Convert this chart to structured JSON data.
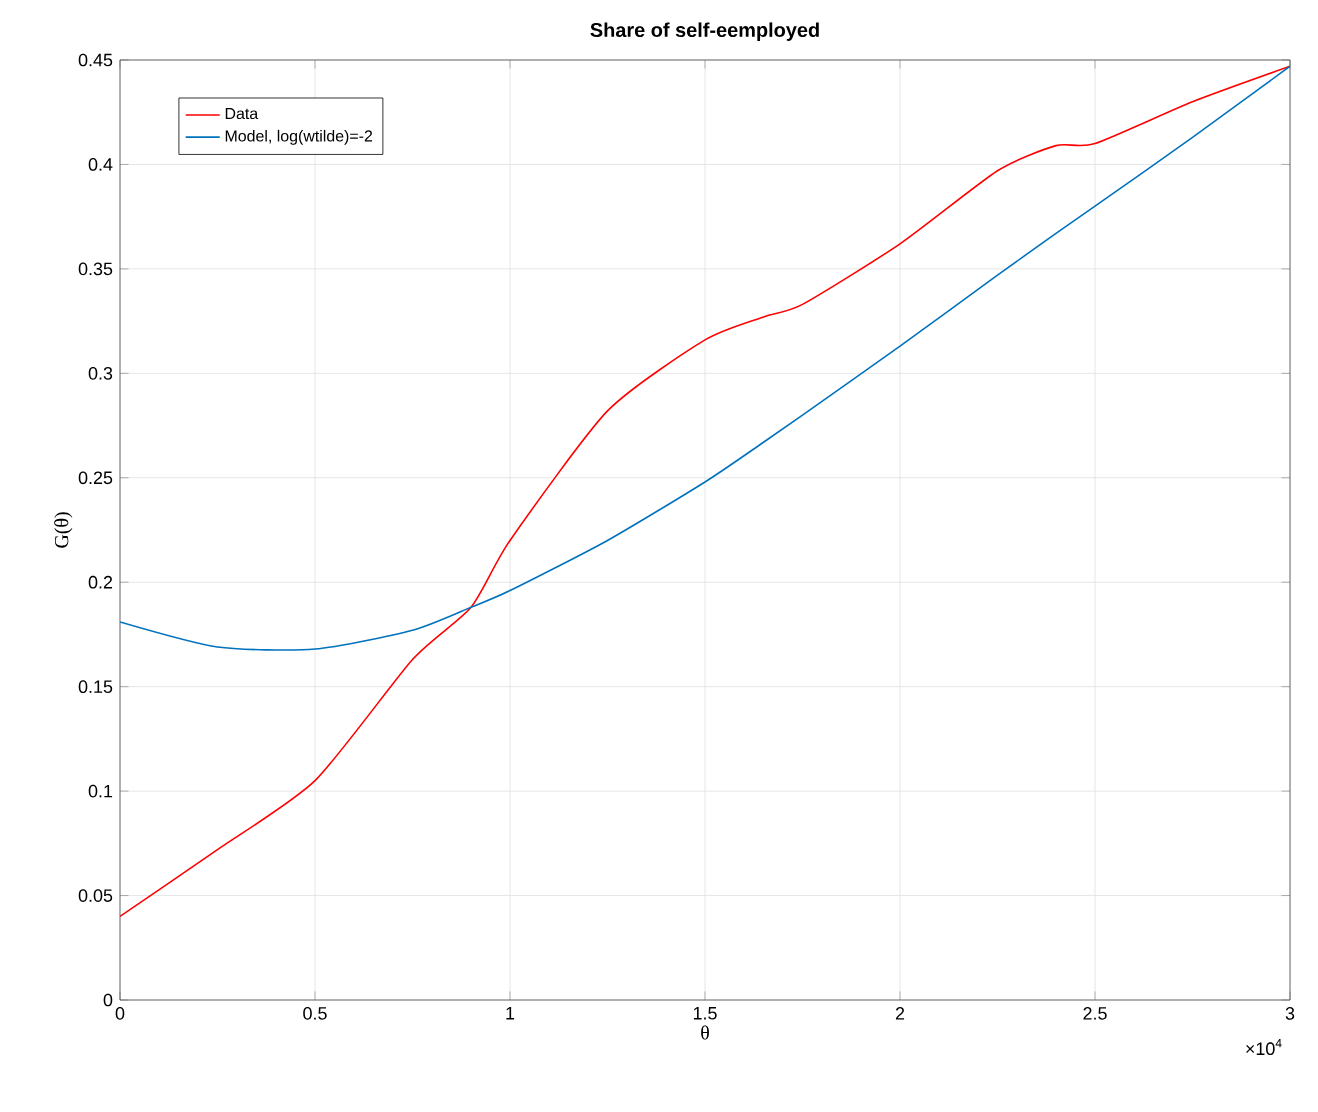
{
  "chart_data": {
    "type": "line",
    "title": "Share of self-eemployed",
    "xlabel": "θ",
    "ylabel": "G(θ)",
    "annotations": [
      "×10$^{4}$"
    ],
    "x": [
      0,
      0.25,
      0.5,
      0.75,
      0.9,
      1.0,
      1.25,
      1.5,
      1.65,
      1.75,
      2.0,
      2.25,
      2.4,
      2.5,
      2.75,
      3.0
    ],
    "series": [
      {
        "name": "Data",
        "color": "#ff0000",
        "values": [
          0.04,
          0.072,
          0.105,
          0.163,
          0.188,
          0.22,
          0.282,
          0.316,
          0.327,
          0.333,
          0.362,
          0.397,
          0.409,
          0.41,
          0.43,
          0.447
        ]
      },
      {
        "name": "Model, log(wtilde)=-2",
        "color": "#0072bd",
        "values": [
          0.181,
          0.169,
          0.168,
          0.177,
          0.188,
          0.196,
          0.22,
          0.248,
          0.267,
          0.28,
          0.313,
          0.347,
          0.367,
          0.38,
          0.413,
          0.447
        ]
      }
    ],
    "xlim": [
      0,
      3
    ],
    "ylim": [
      0,
      0.45
    ],
    "xticks": [
      0,
      0.5,
      1,
      1.5,
      2,
      2.5,
      3
    ],
    "yticks": [
      0,
      0.05,
      0.1,
      0.15,
      0.2,
      0.25,
      0.3,
      0.35,
      0.4,
      0.45
    ],
    "grid": true,
    "legend": "top left",
    "line_style": "solid",
    "marker": "none"
  }
}
